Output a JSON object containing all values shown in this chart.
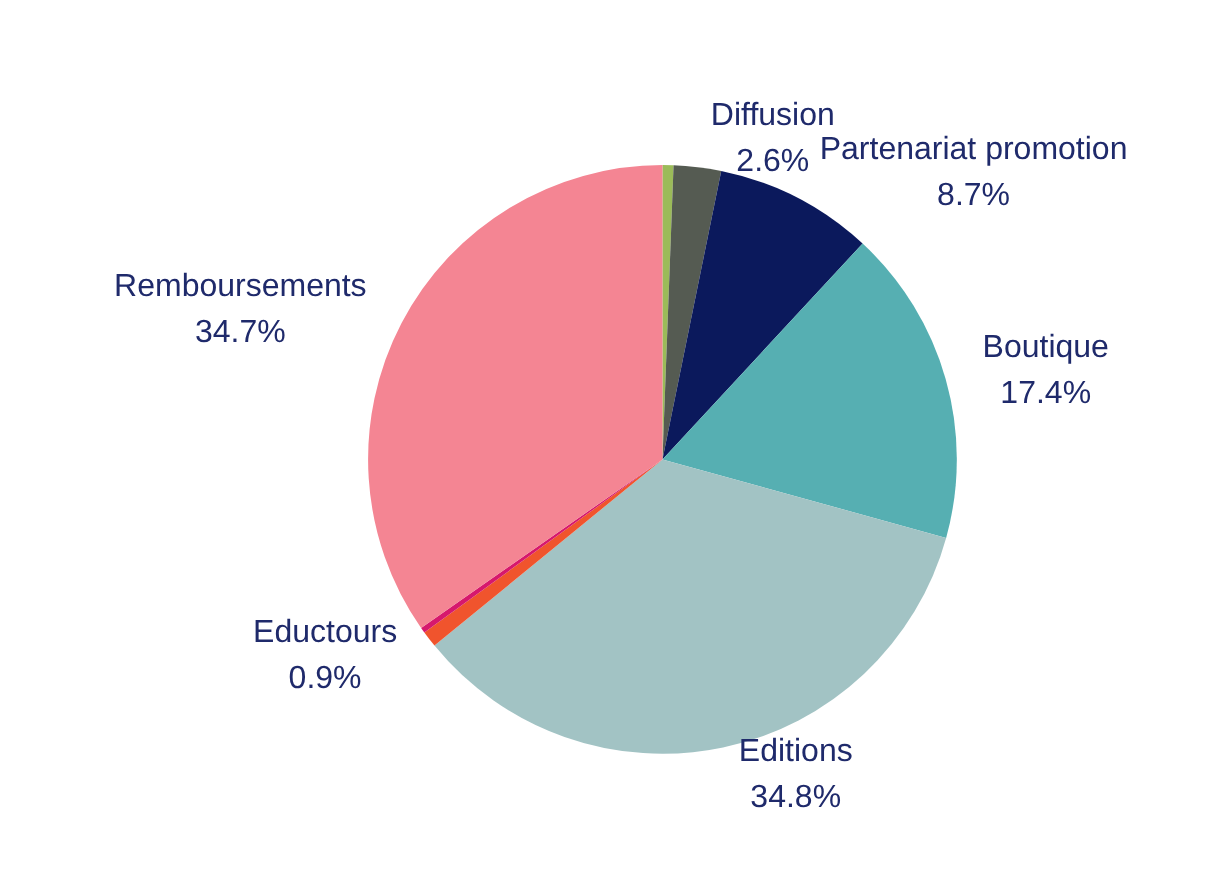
{
  "chart_data": {
    "type": "pie",
    "categories": [
      null,
      "Diffusion",
      "Partenariat promotion",
      "Boutique",
      "Editions",
      "Eductours",
      null,
      "Remboursements"
    ],
    "values": [
      0.6,
      2.6,
      8.7,
      17.4,
      34.8,
      0.9,
      0.3,
      34.7
    ],
    "value_labels": [
      null,
      "2.6%",
      "8.7%",
      "17.4%",
      "34.8%",
      "0.9%",
      null,
      "34.7%"
    ],
    "colors": [
      "#9bbb59",
      "#555b52",
      "#0b195c",
      "#56afb2",
      "#a2c3c4",
      "#f0542d",
      "#d6186d",
      "#f48593"
    ],
    "legend": false
  }
}
